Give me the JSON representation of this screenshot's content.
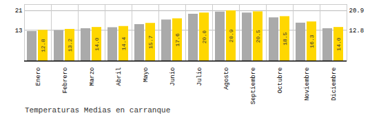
{
  "chart_data": {
    "type": "bar",
    "title": "Temperaturas Medias en carranque",
    "categories": [
      "Enero",
      "Febrero",
      "Marzo",
      "Abril",
      "Mayo",
      "Junio",
      "Julio",
      "Agosto",
      "Septiembre",
      "Octubre",
      "Noviembre",
      "Diciembre"
    ],
    "series": [
      {
        "color": "#AAAAAA",
        "values": [
          12.3,
          12.7,
          13.5,
          13.9,
          15.2,
          17.1,
          19.5,
          20.4,
          20.0,
          18.0,
          15.8,
          13.5
        ]
      },
      {
        "color": "#FFD700",
        "values": [
          12.8,
          13.2,
          14.0,
          14.4,
          15.7,
          17.6,
          20.0,
          20.9,
          20.5,
          18.5,
          16.3,
          14.0
        ],
        "data_labels": true,
        "value_labels": [
          "12.8",
          "13.2",
          "14.0",
          "14.4",
          "15.7",
          "17.6",
          "20.0",
          "20.9",
          "20.5",
          "18.5",
          "16.3",
          "14.0"
        ]
      }
    ],
    "ylim": [
      0.0,
      23.5
    ],
    "yticks": [
      12.8,
      20.9
    ],
    "y2lim": [
      0.0,
      23.5
    ],
    "y2ticks": [
      12.8,
      20.9
    ],
    "grid": true
  }
}
